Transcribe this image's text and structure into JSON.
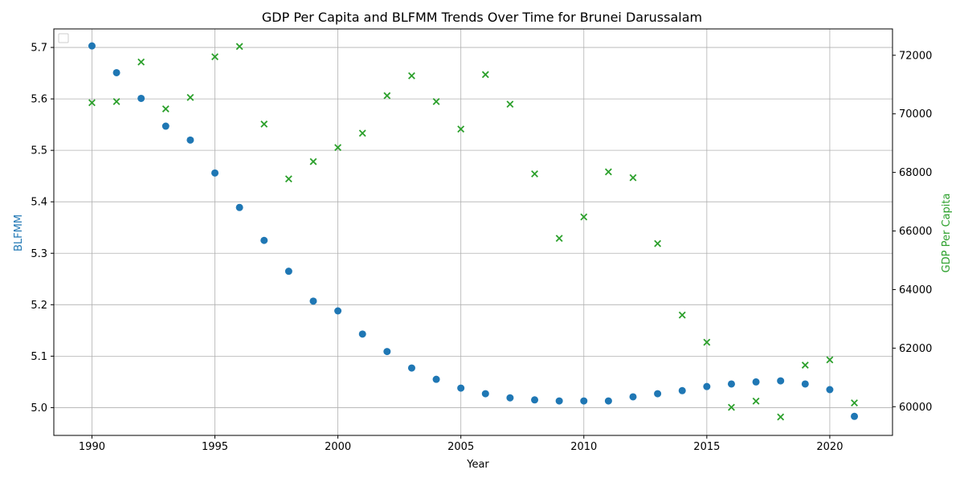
{
  "chart_data": {
    "type": "scatter",
    "title": "GDP Per Capita and BLFMM Trends Over Time for Brunei Darussalam",
    "xlabel": "Year",
    "ylabel": "BLFMM",
    "y2label": "GDP Per Capita",
    "xlim": [
      1988.45,
      2022.55
    ],
    "ylim": [
      4.946,
      5.736
    ],
    "y2lim": [
      59020,
      72900
    ],
    "xticks": [
      1990,
      1995,
      2000,
      2005,
      2010,
      2015,
      2020
    ],
    "yticks": [
      5.0,
      5.1,
      5.2,
      5.3,
      5.4,
      5.5,
      5.6,
      5.7
    ],
    "ytick_labels": [
      "5.0",
      "5.1",
      "5.2",
      "5.3",
      "5.4",
      "5.5",
      "5.6",
      "5.7"
    ],
    "y2ticks": [
      60000,
      62000,
      64000,
      66000,
      68000,
      70000,
      72000
    ],
    "grid": true,
    "legend": "top-left (empty)",
    "x": [
      1990,
      1991,
      1992,
      1993,
      1994,
      1995,
      1996,
      1997,
      1998,
      1999,
      2000,
      2001,
      2002,
      2003,
      2004,
      2005,
      2006,
      2007,
      2008,
      2009,
      2010,
      2011,
      2012,
      2013,
      2014,
      2015,
      2016,
      2017,
      2018,
      2019,
      2020,
      2021
    ],
    "series": [
      {
        "axis": "left",
        "marker": "circle",
        "color": "#1f77b4",
        "values": [
          5.703,
          5.651,
          5.601,
          5.547,
          5.52,
          5.456,
          5.389,
          5.325,
          5.265,
          5.207,
          5.188,
          5.143,
          5.109,
          5.077,
          5.055,
          5.038,
          5.027,
          5.019,
          5.015,
          5.013,
          5.013,
          5.013,
          5.021,
          5.027,
          5.033,
          5.041,
          5.046,
          5.05,
          5.052,
          5.046,
          5.035,
          4.983
        ]
      },
      {
        "axis": "right",
        "marker": "x",
        "color": "#2ca02c",
        "values": [
          70380,
          70420,
          71770,
          70170,
          70560,
          71950,
          72300,
          69650,
          67780,
          68370,
          68850,
          69340,
          70620,
          71300,
          70420,
          69480,
          71340,
          70330,
          67950,
          65750,
          66480,
          68020,
          67820,
          65570,
          63130,
          62200,
          59980,
          60190,
          59650,
          61420,
          61600,
          60130
        ]
      }
    ]
  }
}
